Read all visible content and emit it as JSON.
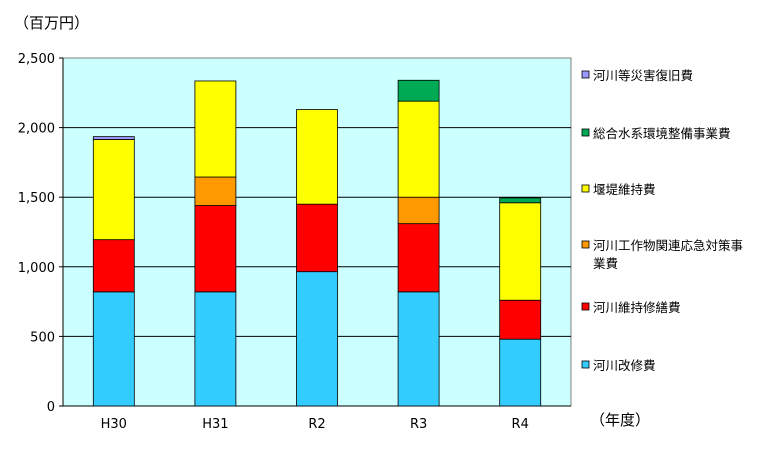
{
  "chart_data": {
    "type": "bar",
    "stacked": true,
    "y_unit_label": "（百万円）",
    "x_unit_label": "（年度）",
    "categories": [
      "H30",
      "H31",
      "R2",
      "R3",
      "R4"
    ],
    "ylim": [
      0,
      2500
    ],
    "yticks": [
      0,
      500,
      1000,
      1500,
      2000,
      2500
    ],
    "ytick_labels": [
      "0",
      "500",
      "1,000",
      "1,500",
      "2,000",
      "2,500"
    ],
    "grid": true,
    "legend_position": "right",
    "plot_background": "#ccffff",
    "series": [
      {
        "name": "河川改修費",
        "color": "#33ccff",
        "values": [
          820,
          820,
          965,
          820,
          480
        ]
      },
      {
        "name": "河川維持修繕費",
        "color": "#ff0000",
        "values": [
          375,
          620,
          485,
          490,
          280
        ]
      },
      {
        "name": "河川工作物関連応急対策事業費",
        "legend_lines": [
          "河川工作物関連応急対策事",
          "業費"
        ],
        "color": "#ff9900",
        "values": [
          0,
          205,
          0,
          190,
          0
        ]
      },
      {
        "name": "堰堤維持費",
        "color": "#ffff00",
        "values": [
          720,
          690,
          680,
          690,
          700
        ]
      },
      {
        "name": "総合水系環境整備事業費",
        "color": "#00aa55",
        "values": [
          0,
          0,
          0,
          150,
          35
        ]
      },
      {
        "name": "河川等災害復旧費",
        "color": "#9999ff",
        "values": [
          20,
          0,
          0,
          0,
          0
        ]
      }
    ]
  }
}
